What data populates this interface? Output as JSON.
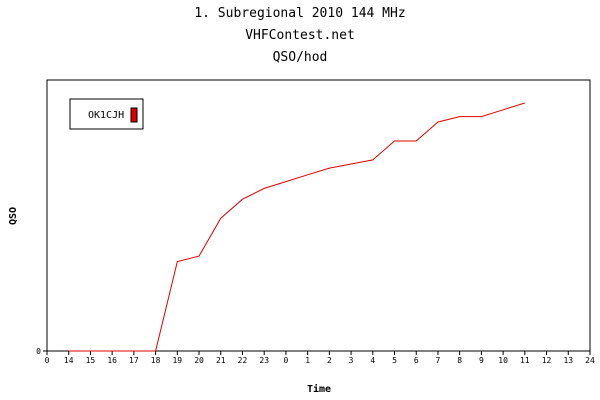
{
  "titles": {
    "line1": "1. Subregional 2010 144 MHz",
    "line2": "VHFContest.net",
    "line3": "QSO/hod"
  },
  "chart_data": {
    "type": "line",
    "xlabel": "Time",
    "ylabel": "QSO",
    "x_ticks": [
      "0",
      "14",
      "15",
      "16",
      "17",
      "18",
      "19",
      "20",
      "21",
      "22",
      "23",
      "0",
      "1",
      "2",
      "3",
      "4",
      "5",
      "6",
      "7",
      "8",
      "9",
      "10",
      "11",
      "12",
      "13",
      "24"
    ],
    "y_ticks": [
      "0"
    ],
    "ylim": [
      0,
      100
    ],
    "grid": false,
    "legend_position": "top-left",
    "series": [
      {
        "name": "OK1CJH",
        "color": "#dd0000",
        "x": [
          "14",
          "15",
          "16",
          "17",
          "18",
          "19",
          "20",
          "21",
          "22",
          "23",
          "0",
          "1",
          "2",
          "3",
          "4",
          "5",
          "6",
          "7",
          "8",
          "9",
          "10",
          "11"
        ],
        "values": [
          0,
          0,
          0,
          0,
          0,
          33,
          35,
          49,
          56,
          60,
          62.5,
          65,
          67.5,
          69,
          70.5,
          77.5,
          77.5,
          84.5,
          86.5,
          86.5,
          89,
          91.5
        ]
      }
    ]
  }
}
